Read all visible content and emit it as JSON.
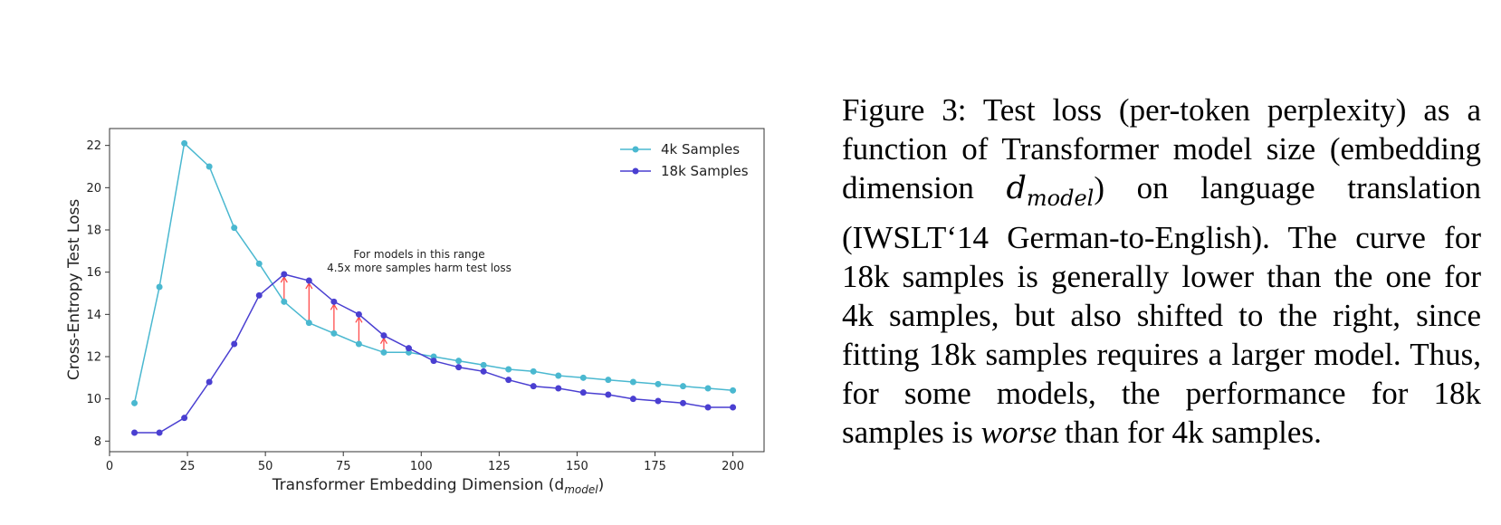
{
  "chart_data": {
    "type": "line",
    "x": [
      8,
      16,
      24,
      32,
      40,
      48,
      56,
      64,
      72,
      80,
      88,
      96,
      104,
      112,
      120,
      128,
      136,
      144,
      152,
      160,
      168,
      176,
      184,
      192,
      200
    ],
    "series": [
      {
        "name": "4k Samples",
        "color": "#4ab8d0",
        "values": [
          9.8,
          15.3,
          22.1,
          21.0,
          18.1,
          16.4,
          14.6,
          13.6,
          13.1,
          12.6,
          12.2,
          12.2,
          12.0,
          11.8,
          11.6,
          11.4,
          11.3,
          11.1,
          11.0,
          10.9,
          10.8,
          10.7,
          10.6,
          10.5,
          10.4
        ]
      },
      {
        "name": "18k Samples",
        "color": "#4a3fd1",
        "values": [
          8.4,
          8.4,
          9.1,
          10.8,
          12.6,
          14.9,
          15.9,
          15.6,
          14.6,
          14.0,
          13.0,
          12.4,
          11.8,
          11.5,
          11.3,
          10.9,
          10.6,
          10.5,
          10.3,
          10.2,
          10.0,
          9.9,
          9.8,
          9.6,
          9.6
        ]
      }
    ],
    "xlabel": "Transformer Embedding Dimension (d",
    "xlabel_sub": "model",
    "xlabel_close": ")",
    "ylabel": "Cross-Entropy Test Loss",
    "xlim": [
      0,
      210
    ],
    "ylim": [
      7.5,
      22.8
    ],
    "xticks": [
      "0",
      "25",
      "50",
      "75",
      "100",
      "125",
      "150",
      "175",
      "200"
    ],
    "yticks": [
      "8",
      "10",
      "12",
      "14",
      "16",
      "18",
      "20",
      "22"
    ],
    "grid": false,
    "legend": "top-right",
    "annotation": {
      "lines": [
        "For models in this range",
        "4.5x more samples harm test loss"
      ],
      "arrow_color": "#ff4d4d",
      "arrow_x": [
        56,
        64,
        72,
        80,
        88
      ]
    }
  },
  "caption": {
    "label": "Figure 3: ",
    "p1": "Test loss (per-token perplexity) as a function of Transformer model size (embedding dimension ",
    "math_d": "d",
    "math_sub": "model",
    "p2": ") on language translation (IWSLT‘14 German-to-English). The curve for 18k samples is generally lower than the one for 4k samples, but also shifted to the right, since fitting 18k samples requires a larger model. Thus, for some models, the performance for 18k samples is ",
    "emph": "worse",
    "p3": " than for 4k samples."
  }
}
